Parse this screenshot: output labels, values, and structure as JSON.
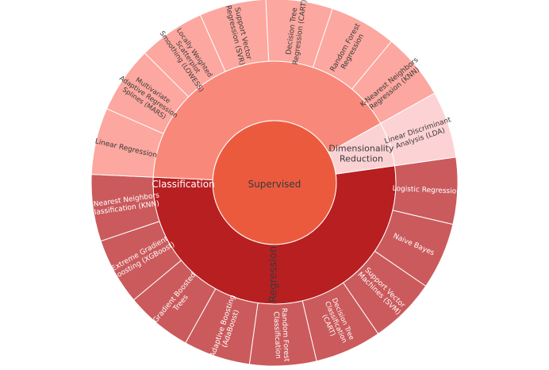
{
  "chart_data": {
    "type": "sunburst",
    "title": "",
    "root": {
      "label": "Supervised",
      "color": "#EC5A3E",
      "children": [
        {
          "label": "Classification",
          "color": "#B81F21",
          "children": [
            {
              "label": "Logistic Regression",
              "lines": [
                "Logistic Regression"
              ],
              "color": "#CB5A5C",
              "value": 1
            },
            {
              "label": "Naive Bayes",
              "lines": [
                "Naive Bayes"
              ],
              "color": "#CB5A5C",
              "value": 1
            },
            {
              "label": "Support Vector Machines (SVM)",
              "lines": [
                "Support Vector",
                "Machines (SVM)"
              ],
              "color": "#CB5A5C",
              "value": 1
            },
            {
              "label": "Decision Tree Classification (CART)",
              "lines": [
                "Decision Tree",
                "Classification",
                "(CART)"
              ],
              "color": "#CB5A5C",
              "value": 1
            },
            {
              "label": "Random Forest Classification",
              "lines": [
                "Random Forest",
                "Classification"
              ],
              "color": "#CB5A5C",
              "value": 1
            },
            {
              "label": "Adaptive Boosting (AdaBoost)",
              "lines": [
                "Adaptive Boosting",
                "(AdaBoost)"
              ],
              "color": "#CB5A5C",
              "value": 1
            },
            {
              "label": "Gradient Boosted Trees",
              "lines": [
                "Gradient Boosted",
                "Trees"
              ],
              "color": "#CB5A5C",
              "value": 1
            },
            {
              "label": "Extreme Gradient Boosting (XGBoost)",
              "lines": [
                "Extreme Gradient",
                "Boosting (XGBoost)"
              ],
              "color": "#CB5A5C",
              "value": 1
            },
            {
              "label": "K-Nearest Neighbors Classification (KNN)",
              "lines": [
                "K-Nearest Neighbors",
                "Classification (KNN)"
              ],
              "color": "#CB5A5C",
              "value": 1
            }
          ]
        },
        {
          "label": "Regression",
          "color": "#F8897A",
          "children": [
            {
              "label": "Linear Regression",
              "lines": [
                "Linear Regression"
              ],
              "color": "#FCA79F",
              "value": 1
            },
            {
              "label": "Multivariate Adaptive Regression Splines (MARS)",
              "lines": [
                "Multivariate",
                "Adaptive Regression",
                "Splines (MARS)"
              ],
              "color": "#FCA79F",
              "value": 1
            },
            {
              "label": "Locally Weighted Scatterplot Smoothing (LOWESS)",
              "lines": [
                "Locally Weighted",
                "Scatterplot",
                "Smoothing (LOWESS)"
              ],
              "color": "#FCA79F",
              "value": 1
            },
            {
              "label": "Support Vector Regression (SVR)",
              "lines": [
                "Support Vector",
                "Regression (SVR)"
              ],
              "color": "#FCA79F",
              "value": 1
            },
            {
              "label": "Decision Tree Regression (CART)",
              "lines": [
                "Decision Tree",
                "Regression (CART)"
              ],
              "color": "#FCA79F",
              "value": 1
            },
            {
              "label": "Random Forest Regression",
              "lines": [
                "Random Forest",
                "Regression"
              ],
              "color": "#FCA79F",
              "value": 1
            },
            {
              "label": "K-Nearest Neighbors Regression (KNN)",
              "lines": [
                "K-Nearest Neighbors",
                "Regression (KNN)"
              ],
              "color": "#FCA79F",
              "value": 1
            }
          ]
        },
        {
          "label": "Dimensionality Reduction",
          "lines": [
            "Dimensionality",
            "Reduction"
          ],
          "color": "#FBD2D4",
          "children": [
            {
              "label": "Linear Discriminant Analysis (LDA)",
              "lines": [
                "Linear Discriminant",
                "Analysis (LDA)"
              ],
              "color": "#FDD2D4",
              "value": 1
            }
          ]
        }
      ]
    },
    "legend": false
  }
}
